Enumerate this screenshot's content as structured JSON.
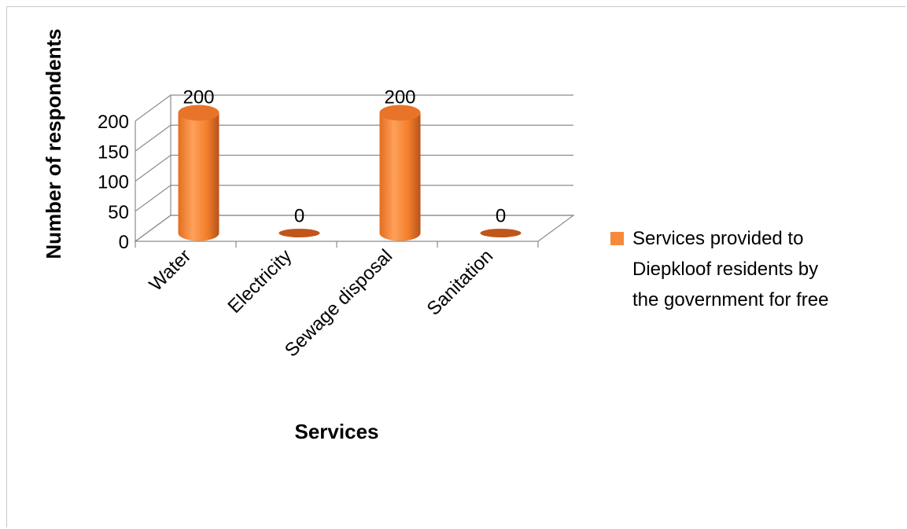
{
  "chart_data": {
    "type": "bar",
    "style": "3d-cylinder",
    "categories": [
      "Water",
      "Electricity",
      "Sewage disposal",
      "Sanitation"
    ],
    "series": [
      {
        "name": "Services provided to Diepkloof residents by the government for free",
        "values": [
          200,
          0,
          200,
          0
        ],
        "color": "#f6893a"
      }
    ],
    "data_labels": [
      "200",
      "0",
      "200",
      "0"
    ],
    "xlabel": "Services",
    "ylabel": "Number of respondents",
    "ylim": [
      0,
      200
    ],
    "yticks": [
      0,
      50,
      100,
      150,
      200
    ],
    "grid": true,
    "legend": "right"
  },
  "legend": {
    "lines": [
      "Services provided to",
      "Diepkloof residents by",
      "the government for free"
    ]
  },
  "colors": {
    "bar": "#f6893a",
    "bar_dark": "#c0561b",
    "bar_top": "#e8742a",
    "grid": "#8c8c8c"
  }
}
